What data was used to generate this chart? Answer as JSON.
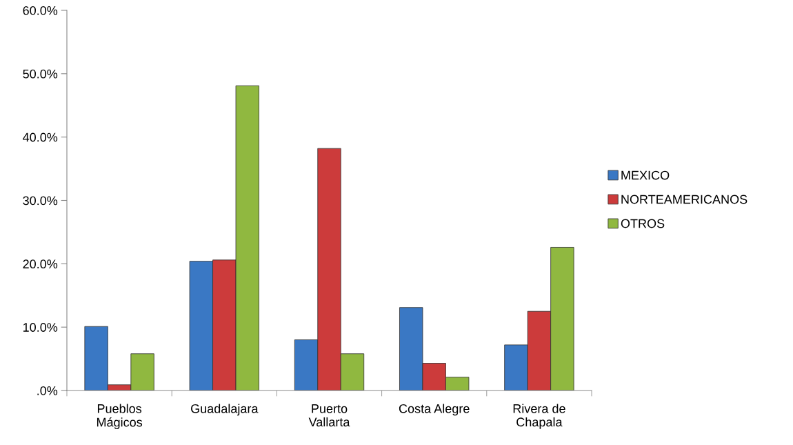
{
  "chart_data": {
    "type": "bar",
    "categories": [
      "Pueblos\nMágicos",
      "Guadalajara",
      "Puerto\nVallarta",
      "Costa Alegre",
      "Rivera de\nChapala"
    ],
    "series": [
      {
        "name": "MEXICO",
        "color": "#3a78c4",
        "values": [
          10.1,
          20.4,
          8.0,
          13.1,
          7.2
        ]
      },
      {
        "name": "NORTEAMERICANOS",
        "color": "#cc3b3b",
        "values": [
          0.9,
          20.6,
          38.2,
          4.3,
          12.5
        ]
      },
      {
        "name": "OTROS",
        "color": "#90b840",
        "values": [
          5.8,
          48.1,
          5.8,
          2.1,
          22.6
        ]
      }
    ],
    "ylim": [
      0,
      60
    ],
    "yticks": [
      {
        "value": 0,
        "label": ".0%"
      },
      {
        "value": 10,
        "label": "10.0%"
      },
      {
        "value": 20,
        "label": "20.0%"
      },
      {
        "value": 30,
        "label": "30.0%"
      },
      {
        "value": 40,
        "label": "40.0%"
      },
      {
        "value": 50,
        "label": "50.0%"
      },
      {
        "value": 60,
        "label": "60.0%"
      }
    ],
    "grid": false,
    "legend": "right"
  }
}
